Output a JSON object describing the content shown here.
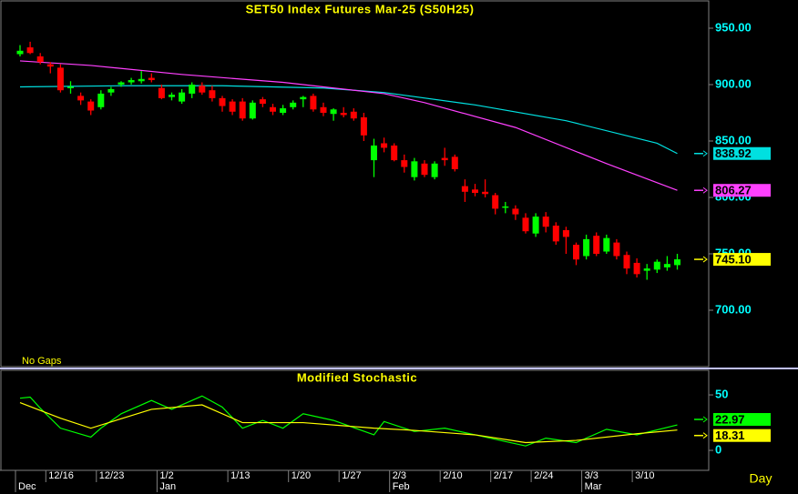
{
  "chart_data": [
    {
      "type": "candlestick",
      "title": "SET50  Index  Futures  Mar-25  (S50H25)",
      "note": "No  Gaps",
      "x_label": "Day",
      "categories": [
        null,
        null,
        null,
        "12/16",
        null,
        null,
        null,
        null,
        "12/23",
        null,
        null,
        null,
        null,
        null,
        "1/2",
        null,
        null,
        null,
        null,
        null,
        null,
        "1/13",
        null,
        null,
        null,
        null,
        null,
        "1/20",
        null,
        null,
        null,
        null,
        "1/27",
        null,
        null,
        null,
        null,
        "2/3",
        null,
        null,
        null,
        null,
        "2/10",
        null,
        null,
        null,
        null,
        "2/17",
        null,
        null,
        null,
        "2/24",
        null,
        null,
        null,
        null,
        "3/3",
        null,
        null,
        null,
        null,
        "3/10",
        null,
        null,
        null,
        null
      ],
      "month_categories": [
        "Dec",
        null,
        null,
        null,
        null,
        null,
        null,
        null,
        null,
        null,
        null,
        null,
        null,
        null,
        "Jan",
        null,
        null,
        null,
        null,
        null,
        null,
        null,
        null,
        null,
        null,
        null,
        null,
        null,
        null,
        null,
        null,
        null,
        null,
        null,
        null,
        null,
        null,
        "Feb",
        null,
        null,
        null,
        null,
        null,
        null,
        null,
        null,
        null,
        null,
        null,
        null,
        null,
        null,
        null,
        null,
        null,
        null,
        "Mar",
        null,
        null,
        null,
        null,
        null,
        null,
        null,
        null,
        null
      ],
      "open": [
        927,
        933,
        925,
        918,
        915,
        897,
        890,
        885,
        880,
        893,
        900,
        902,
        903,
        906,
        897,
        889,
        885,
        892,
        899,
        895,
        888,
        885,
        885,
        870,
        887,
        880,
        875,
        880,
        887,
        890,
        880,
        874,
        875,
        876,
        871,
        833,
        848,
        846,
        833,
        818,
        830,
        818,
        835,
        836,
        810,
        807,
        805,
        802,
        791,
        790,
        782,
        768,
        783,
        775,
        771,
        758,
        748,
        766,
        752,
        760,
        749,
        742,
        735,
        736,
        738,
        740
      ],
      "high": [
        935,
        938,
        928,
        920,
        918,
        903,
        893,
        887,
        895,
        898,
        903,
        906,
        912,
        910,
        900,
        893,
        896,
        902,
        902,
        899,
        890,
        887,
        888,
        886,
        889,
        883,
        882,
        886,
        890,
        892,
        884,
        879,
        880,
        879,
        875,
        852,
        853,
        848,
        838,
        835,
        833,
        832,
        844,
        838,
        816,
        812,
        816,
        804,
        796,
        793,
        786,
        786,
        787,
        778,
        774,
        760,
        767,
        769,
        767,
        763,
        752,
        746,
        741,
        745,
        748,
        750
      ],
      "low": [
        925,
        927,
        918,
        910,
        893,
        892,
        882,
        873,
        878,
        890,
        898,
        900,
        901,
        902,
        887,
        886,
        883,
        888,
        891,
        885,
        876,
        873,
        868,
        869,
        880,
        873,
        873,
        878,
        880,
        876,
        872,
        868,
        871,
        868,
        850,
        818,
        840,
        832,
        822,
        815,
        818,
        816,
        828,
        823,
        796,
        801,
        800,
        785,
        786,
        780,
        768,
        765,
        769,
        758,
        750,
        740,
        745,
        748,
        750,
        745,
        732,
        729,
        727,
        733,
        735,
        736
      ],
      "close": [
        930,
        928,
        920,
        916,
        895,
        898,
        886,
        877,
        892,
        896,
        902,
        904,
        905,
        904,
        888,
        891,
        893,
        900,
        893,
        888,
        881,
        876,
        870,
        884,
        883,
        876,
        879,
        884,
        889,
        878,
        875,
        878,
        873,
        870,
        855,
        846,
        844,
        833,
        827,
        832,
        820,
        830,
        833,
        825,
        805,
        804,
        803,
        790,
        792,
        785,
        770,
        783,
        774,
        761,
        765,
        745,
        763,
        750,
        764,
        748,
        737,
        732,
        737,
        743,
        741,
        745.1
      ],
      "last_close_label": "745.10",
      "last_close_color": "#ffff00",
      "up_color": "#00ff00",
      "down_color": "#ff0000",
      "ylim": [
        650,
        975
      ],
      "yticks": [
        {
          "value": 700,
          "label": "700.00"
        },
        {
          "value": 750,
          "label": "750.00"
        },
        {
          "value": 800,
          "label": "800.00"
        },
        {
          "value": 850,
          "label": "850.00"
        },
        {
          "value": 900,
          "label": "900.00"
        },
        {
          "value": 950,
          "label": "950.00"
        }
      ],
      "overlays": [
        {
          "color": "#00e0e0",
          "x": [
            0,
            10,
            20,
            30,
            36,
            45,
            54,
            63,
            65
          ],
          "values": [
            898,
            899,
            899,
            897,
            893,
            882,
            868,
            848,
            838.92
          ]
        },
        {
          "color": "#ff40ff",
          "x": [
            0,
            7,
            16,
            26,
            36,
            40,
            49,
            58,
            65
          ],
          "values": [
            921,
            917,
            909,
            902,
            892,
            884,
            862,
            830,
            806.27
          ]
        }
      ]
    },
    {
      "type": "line",
      "title": "Modified  Stochastic",
      "ylim": [
        -18,
        73
      ],
      "yticks": [
        0,
        50
      ],
      "series": [
        {
          "color": "#00ff00",
          "x": [
            0,
            1,
            2,
            4,
            7,
            8,
            10,
            13,
            15,
            18,
            20,
            22,
            24,
            26,
            28,
            31,
            35,
            36,
            39,
            42,
            45,
            48,
            50,
            52,
            55,
            58,
            61,
            65
          ],
          "values": [
            47,
            48,
            38,
            20,
            12,
            20,
            33,
            45,
            37,
            49,
            39,
            20,
            27,
            20,
            33,
            27,
            14,
            26,
            17,
            20,
            14,
            8,
            4,
            11,
            7,
            19,
            14,
            22.97
          ]
        },
        {
          "color": "#ffff00",
          "x": [
            0,
            4,
            7,
            13,
            18,
            22,
            28,
            35,
            39,
            45,
            50,
            55,
            61,
            65
          ],
          "values": [
            43,
            29,
            20,
            37,
            41,
            25,
            25,
            20,
            18,
            14,
            7,
            9,
            15,
            18.31
          ]
        }
      ]
    }
  ]
}
